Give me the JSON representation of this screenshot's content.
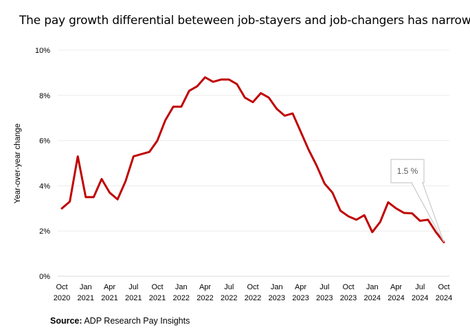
{
  "title": "The pay growth differential beteween job-stayers and job-changers has narrowed.",
  "source_label": "Source:",
  "source_text": "ADP Research Pay Insights",
  "chart_data": {
    "type": "line",
    "title": "The pay growth differential beteween job-stayers and job-changers has narrowed.",
    "xlabel": "",
    "ylabel": "Year-over-year change",
    "ylim": [
      0,
      10
    ],
    "y_ticks": [
      "0%",
      "2%",
      "4%",
      "6%",
      "8%",
      "10%"
    ],
    "x_ticks": [
      {
        "index": 0,
        "line1": "Oct",
        "line2": "2020"
      },
      {
        "index": 3,
        "line1": "Jan",
        "line2": "2021"
      },
      {
        "index": 6,
        "line1": "Apr",
        "line2": "2021"
      },
      {
        "index": 9,
        "line1": "Jul",
        "line2": "2021"
      },
      {
        "index": 12,
        "line1": "Oct",
        "line2": "2021"
      },
      {
        "index": 15,
        "line1": "Jan",
        "line2": "2022"
      },
      {
        "index": 18,
        "line1": "Apr",
        "line2": "2022"
      },
      {
        "index": 21,
        "line1": "Jul",
        "line2": "2022"
      },
      {
        "index": 24,
        "line1": "Oct",
        "line2": "2022"
      },
      {
        "index": 27,
        "line1": "Jan",
        "line2": "2023"
      },
      {
        "index": 30,
        "line1": "Apr",
        "line2": "2023"
      },
      {
        "index": 33,
        "line1": "Jul",
        "line2": "2023"
      },
      {
        "index": 36,
        "line1": "Oct",
        "line2": "2023"
      },
      {
        "index": 39,
        "line1": "Jan",
        "line2": "2024"
      },
      {
        "index": 42,
        "line1": "Apr",
        "line2": "2024"
      },
      {
        "index": 45,
        "line1": "Jul",
        "line2": "2024"
      },
      {
        "index": 48,
        "line1": "Oct",
        "line2": "2024"
      }
    ],
    "x": [
      "2020-10",
      "2020-11",
      "2020-12",
      "2021-01",
      "2021-02",
      "2021-03",
      "2021-04",
      "2021-05",
      "2021-06",
      "2021-07",
      "2021-08",
      "2021-09",
      "2021-10",
      "2021-11",
      "2021-12",
      "2022-01",
      "2022-02",
      "2022-03",
      "2022-04",
      "2022-05",
      "2022-06",
      "2022-07",
      "2022-08",
      "2022-09",
      "2022-10",
      "2022-11",
      "2022-12",
      "2023-01",
      "2023-02",
      "2023-03",
      "2023-04",
      "2023-05",
      "2023-06",
      "2023-07",
      "2023-08",
      "2023-09",
      "2023-10",
      "2023-11",
      "2023-12",
      "2024-01",
      "2024-02",
      "2024-03",
      "2024-04",
      "2024-05",
      "2024-06",
      "2024-07",
      "2024-08",
      "2024-09",
      "2024-10"
    ],
    "series": [
      {
        "color": "#c00000",
        "values": [
          3.0,
          3.3,
          5.3,
          3.5,
          3.5,
          4.3,
          3.7,
          3.4,
          4.2,
          5.3,
          5.4,
          5.5,
          6.0,
          6.9,
          7.5,
          7.5,
          8.2,
          8.4,
          8.8,
          8.6,
          8.7,
          8.7,
          8.5,
          7.9,
          7.7,
          8.1,
          7.9,
          7.4,
          7.1,
          7.2,
          6.4,
          5.6,
          4.9,
          4.1,
          3.7,
          2.9,
          2.65,
          2.5,
          2.7,
          1.95,
          2.4,
          3.27,
          3.0,
          2.8,
          2.78,
          2.45,
          2.5,
          1.95,
          1.5
        ]
      }
    ],
    "annotation": {
      "text": "1.5 %",
      "index": 48,
      "value": 1.5
    },
    "grid": true,
    "legend": "none"
  }
}
